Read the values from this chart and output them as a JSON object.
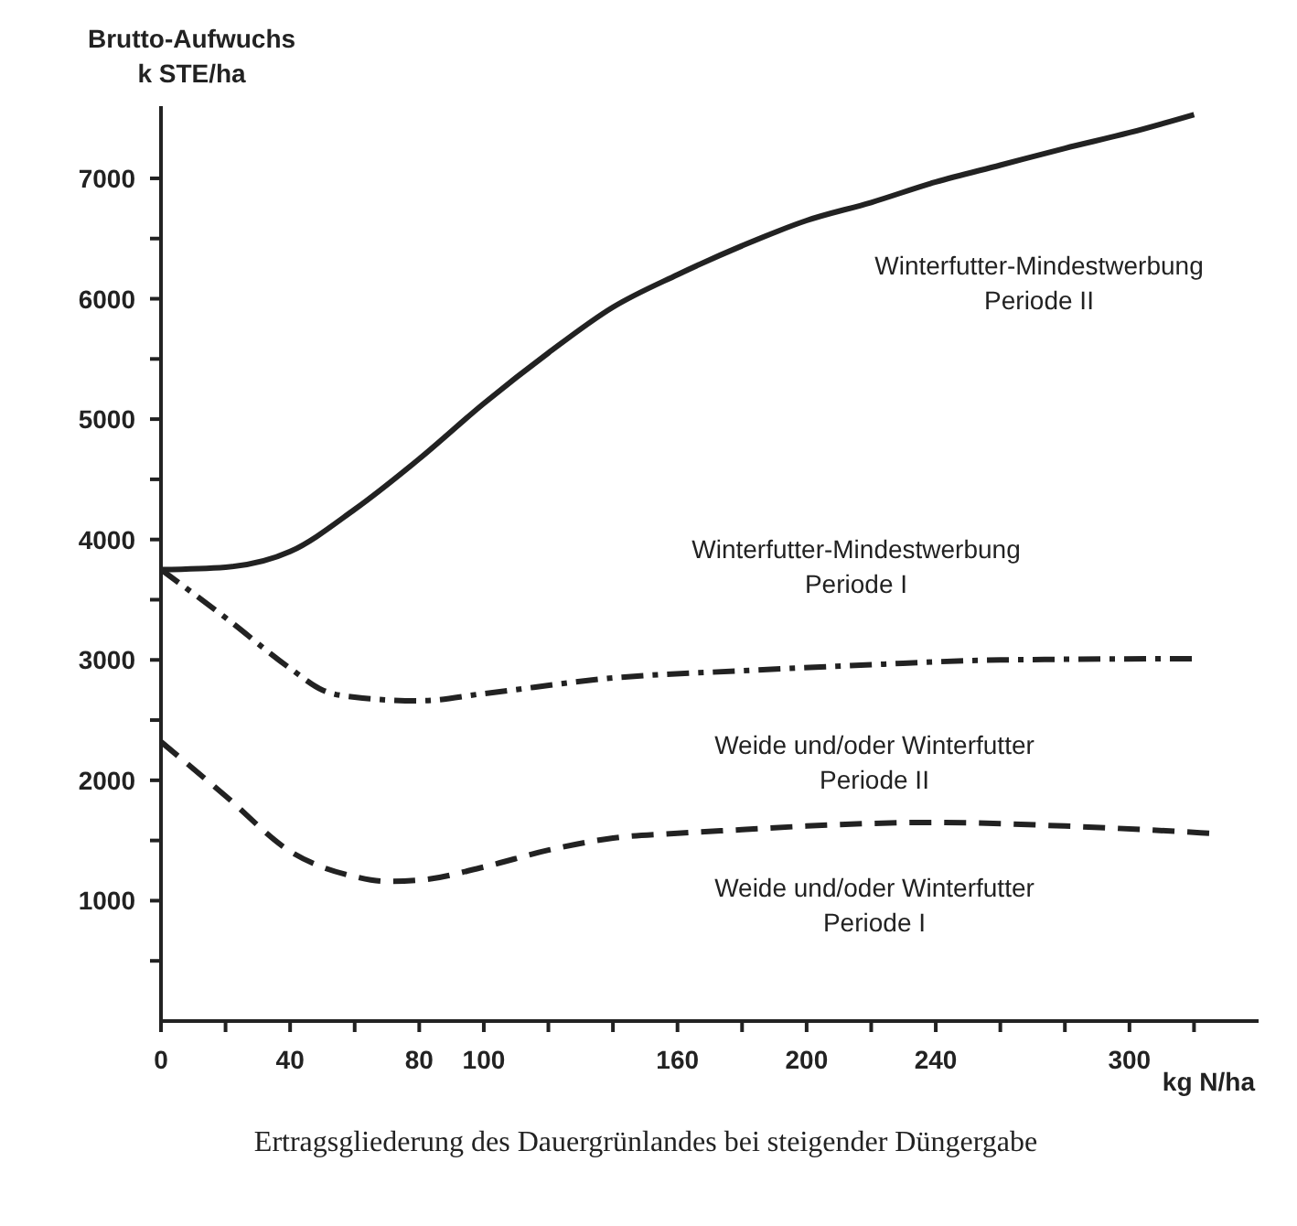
{
  "chart_data": {
    "type": "line",
    "ylabel": "Brutto-Aufwuchs\nk STE/ha",
    "xlabel": "kg N/ha",
    "xlim": [
      0,
      340
    ],
    "ylim": [
      0,
      7600
    ],
    "xticks": [
      0,
      {
        "value": 20,
        "label": null
      },
      40,
      {
        "value": 60,
        "label": null
      },
      80,
      100,
      {
        "value": 120,
        "label": null
      },
      {
        "value": 140,
        "label": null
      },
      160,
      {
        "value": 180,
        "label": null
      },
      200,
      {
        "value": 220,
        "label": null
      },
      240,
      {
        "value": 260,
        "label": null
      },
      {
        "value": 280,
        "label": null
      },
      300,
      {
        "value": 320,
        "label": null
      }
    ],
    "yticks": [
      {
        "value": 500,
        "label": null
      },
      1000,
      {
        "value": 1500,
        "label": null
      },
      2000,
      {
        "value": 2500,
        "label": null
      },
      3000,
      {
        "value": 3500,
        "label": null
      },
      4000,
      {
        "value": 4500,
        "label": null
      },
      5000,
      {
        "value": 5500,
        "label": null
      },
      6000,
      {
        "value": 6500,
        "label": null
      },
      7000
    ],
    "marker": "none",
    "series": [
      {
        "color": "#222222",
        "line_style": "solid",
        "x": [
          0,
          20,
          40,
          60,
          80,
          100,
          120,
          140,
          160,
          180,
          200,
          220,
          240,
          260,
          280,
          300,
          320
        ],
        "values": [
          3750,
          3770,
          3900,
          4250,
          4670,
          5130,
          5550,
          5930,
          6200,
          6440,
          6650,
          6800,
          6970,
          7110,
          7250,
          7380,
          7530
        ]
      },
      {
        "color": "#222222",
        "line_style": "dashdot",
        "x": [
          0,
          20,
          40,
          50,
          60,
          80,
          100,
          140,
          180,
          220,
          260,
          320
        ],
        "values": [
          3750,
          3350,
          2930,
          2750,
          2690,
          2660,
          2720,
          2850,
          2910,
          2960,
          3000,
          3010
        ]
      },
      {
        "color": "#222222",
        "line_style": "dashed",
        "x": [
          0,
          20,
          40,
          60,
          70,
          80,
          100,
          120,
          140,
          160,
          180,
          200,
          240,
          280,
          325
        ],
        "values": [
          2320,
          1870,
          1410,
          1200,
          1160,
          1170,
          1280,
          1420,
          1520,
          1560,
          1590,
          1620,
          1650,
          1620,
          1560
        ]
      }
    ],
    "annotations": [
      "Winterfutter-Mindestwerbung\nPeriode II",
      "Winterfutter-Mindestwerbung\nPeriode I",
      "Weide und/oder Winterfutter\nPeriode II",
      "Weide und/oder Winterfutter\nPeriode I",
      "Ertragsgliederung des Dauergrünlandes bei steigender Düngergabe"
    ]
  }
}
